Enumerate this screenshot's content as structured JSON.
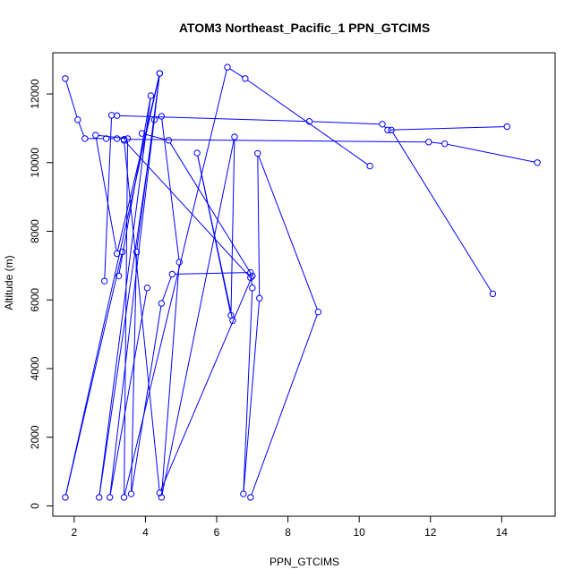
{
  "chart_data": {
    "type": "line",
    "title": "ATOM3 Northeast_Pacific_1 PPN_GTCIMS",
    "xlabel": "PPN_GTCIMS",
    "ylabel": "Altitude (m)",
    "xlim": [
      1.4,
      15.5
    ],
    "ylim": [
      -300,
      13200
    ],
    "xticks": [
      2,
      4,
      6,
      8,
      10,
      12,
      14
    ],
    "yticks": [
      0,
      2000,
      4000,
      6000,
      8000,
      10000,
      12000
    ],
    "grid": false,
    "marker": "open-circle",
    "color": "#0000ff",
    "series": [
      {
        "x": [
          1.75,
          2.1,
          2.3,
          2.9,
          3.2,
          3.4,
          11.95,
          12.4,
          15.0
        ],
        "y": [
          12450,
          11250,
          10700,
          10700,
          10700,
          10680,
          10600,
          10550,
          10000
        ]
      },
      {
        "x": [
          2.85,
          3.05,
          3.2,
          8.6,
          10.65,
          10.8,
          14.15
        ],
        "y": [
          6550,
          11380,
          11370,
          11200,
          11120,
          10950,
          11050
        ]
      },
      {
        "x": [
          3.35,
          1.75,
          4.4,
          3.2,
          2.6,
          3.5,
          3.4,
          6.3,
          6.8,
          10.3
        ],
        "y": [
          7400,
          250,
          12600,
          7350,
          10800,
          10700,
          250,
          12780,
          12450,
          9900
        ]
      },
      {
        "x": [
          3.25,
          4.15,
          2.7,
          4.25,
          4.45,
          4.95,
          4.45,
          6.5,
          6.4,
          5.45,
          6.45
        ],
        "y": [
          6700,
          11950,
          250,
          11250,
          11350,
          7100,
          250,
          10750,
          5550,
          10280,
          5400
        ]
      },
      {
        "x": [
          4.05,
          3.0,
          4.4,
          3.75,
          3.6,
          4.45,
          4.75,
          6.95,
          7.0,
          6.75,
          7.2,
          7.15,
          8.85,
          6.95
        ],
        "y": [
          6350,
          250,
          12600,
          7400,
          350,
          5900,
          6750,
          6800,
          6350,
          350,
          6050,
          10270,
          5650,
          250
        ]
      },
      {
        "x": [
          3.9,
          4.65,
          7.0,
          4.4,
          3.4,
          6.95
        ],
        "y": [
          10850,
          10650,
          6700,
          380,
          10650,
          6650
        ]
      },
      {
        "x": [
          10.9,
          13.75
        ],
        "y": [
          10950,
          6180
        ]
      }
    ]
  }
}
